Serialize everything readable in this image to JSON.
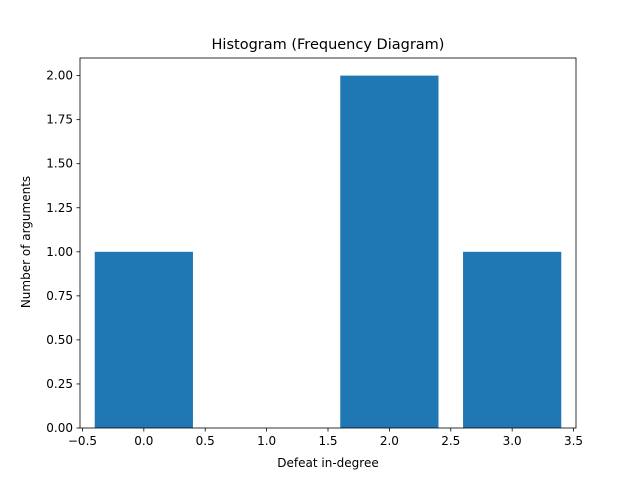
{
  "chart_data": {
    "type": "bar",
    "title": "Histogram (Frequency Diagram)",
    "xlabel": "Defeat in-degree",
    "ylabel": "Number of arguments",
    "x": [
      0,
      2,
      3
    ],
    "values": [
      1,
      2,
      1
    ],
    "bar_width": 0.8,
    "xlim": [
      -0.52,
      3.52
    ],
    "ylim": [
      0,
      2.1
    ],
    "xticks": [
      -0.5,
      0.0,
      0.5,
      1.0,
      1.5,
      2.0,
      2.5,
      3.0,
      3.5
    ],
    "xtick_labels": [
      "−0.5",
      "0.0",
      "0.5",
      "1.0",
      "1.5",
      "2.0",
      "2.5",
      "3.0",
      "3.5"
    ],
    "yticks": [
      0,
      0.25,
      0.5,
      0.75,
      1.0,
      1.25,
      1.5,
      1.75,
      2.0
    ],
    "ytick_labels": [
      "0.00",
      "0.25",
      "0.50",
      "0.75",
      "1.00",
      "1.25",
      "1.50",
      "1.75",
      "2.00"
    ],
    "bar_color": "#1f77b4",
    "grid": false,
    "legend": "none"
  }
}
